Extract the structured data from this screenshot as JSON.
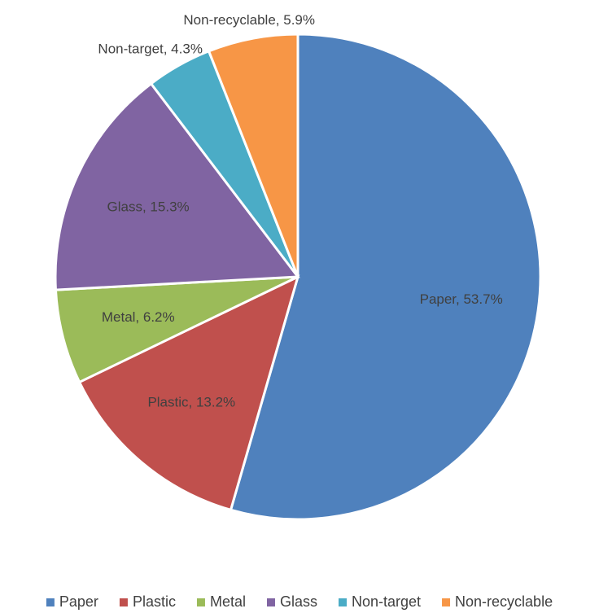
{
  "chart_data": {
    "type": "pie",
    "categories": [
      "Paper",
      "Plastic",
      "Metal",
      "Glass",
      "Non-target",
      "Non-recyclable"
    ],
    "values": [
      53.7,
      13.2,
      6.2,
      15.3,
      4.3,
      5.9
    ],
    "value_labels": [
      "Paper, 53.7%",
      "Plastic, 13.2%",
      "Metal, 6.2%",
      "Glass, 15.3%",
      "Non-target, 4.3%",
      "Non-recyclable, 5.9%"
    ],
    "colors": [
      "#4f81bd",
      "#c0504d",
      "#9bbb59",
      "#8064a2",
      "#4bacc6",
      "#f79646"
    ],
    "legend": "bottom"
  }
}
